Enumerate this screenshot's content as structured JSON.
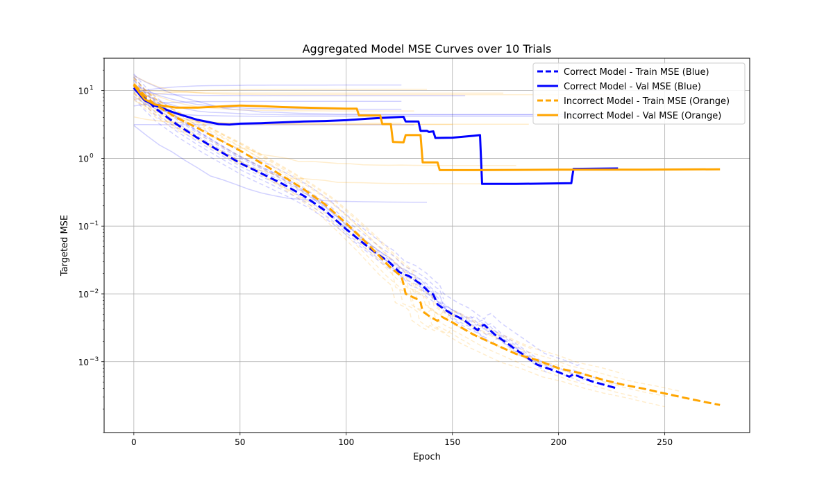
{
  "chart_data": {
    "type": "line",
    "title": "Aggregated Model MSE Curves over 10 Trials",
    "xlabel": "Epoch",
    "ylabel": "Targeted MSE",
    "xlim": [
      -14,
      290
    ],
    "ylim": [
      9e-05,
      30
    ],
    "yscale": "log",
    "grid": true,
    "legend_position": "top-right",
    "x_ticks": [
      0,
      50,
      100,
      150,
      200,
      250
    ],
    "y_ticks": [
      {
        "value": 0.001,
        "base": "10",
        "exp": "−3"
      },
      {
        "value": 0.01,
        "base": "10",
        "exp": "−2"
      },
      {
        "value": 0.1,
        "base": "10",
        "exp": "−1"
      },
      {
        "value": 1,
        "base": "10",
        "exp": "0"
      },
      {
        "value": 10,
        "base": "10",
        "exp": "1"
      }
    ],
    "colors": {
      "correct": "#0000ff",
      "incorrect": "#ffa500",
      "grid": "#b0b0b0"
    },
    "series": [
      {
        "name": "Correct Model - Train MSE (Blue)",
        "color": "#0000ff",
        "style": "dashed",
        "points": [
          [
            0,
            12
          ],
          [
            5,
            8
          ],
          [
            10,
            5.5
          ],
          [
            20,
            3.2
          ],
          [
            30,
            2.0
          ],
          [
            40,
            1.3
          ],
          [
            50,
            0.85
          ],
          [
            60,
            0.6
          ],
          [
            70,
            0.42
          ],
          [
            80,
            0.28
          ],
          [
            90,
            0.17
          ],
          [
            100,
            0.09
          ],
          [
            110,
            0.05
          ],
          [
            115,
            0.038
          ],
          [
            120,
            0.03
          ],
          [
            125,
            0.021
          ],
          [
            130,
            0.018
          ],
          [
            135,
            0.014
          ],
          [
            140,
            0.01
          ],
          [
            141,
            0.0098
          ],
          [
            143,
            0.007
          ],
          [
            146,
            0.006
          ],
          [
            150,
            0.005
          ],
          [
            155,
            0.0042
          ],
          [
            160,
            0.0032
          ],
          [
            162,
            0.0029
          ],
          [
            163,
            0.0033
          ],
          [
            165,
            0.0035
          ],
          [
            170,
            0.0025
          ],
          [
            180,
            0.0015
          ],
          [
            190,
            0.0009
          ],
          [
            200,
            0.0007
          ],
          [
            205,
            0.0006
          ],
          [
            207,
            0.00065
          ],
          [
            215,
            0.00052
          ],
          [
            228,
            0.0004
          ]
        ]
      },
      {
        "name": "Correct Model - Val MSE (Blue)",
        "color": "#0000ff",
        "style": "solid",
        "points": [
          [
            0,
            11
          ],
          [
            5,
            7.2
          ],
          [
            10,
            6.0
          ],
          [
            20,
            4.6
          ],
          [
            30,
            3.7
          ],
          [
            40,
            3.2
          ],
          [
            45,
            3.15
          ],
          [
            50,
            3.25
          ],
          [
            60,
            3.3
          ],
          [
            70,
            3.4
          ],
          [
            80,
            3.5
          ],
          [
            90,
            3.55
          ],
          [
            100,
            3.65
          ],
          [
            110,
            3.85
          ],
          [
            120,
            4.0
          ],
          [
            127,
            4.1
          ],
          [
            128,
            3.5
          ],
          [
            134,
            3.5
          ],
          [
            135,
            2.55
          ],
          [
            138,
            2.55
          ],
          [
            139,
            2.45
          ],
          [
            141,
            2.5
          ],
          [
            142,
            2.0
          ],
          [
            150,
            2.02
          ],
          [
            160,
            2.15
          ],
          [
            163,
            2.2
          ],
          [
            164,
            0.42
          ],
          [
            180,
            0.42
          ],
          [
            206,
            0.43
          ],
          [
            207,
            0.7
          ],
          [
            228,
            0.71
          ]
        ]
      },
      {
        "name": "Incorrect Model - Train MSE (Orange)",
        "color": "#ffa500",
        "style": "dashed",
        "points": [
          [
            0,
            12.5
          ],
          [
            5,
            8.5
          ],
          [
            10,
            6.2
          ],
          [
            20,
            4.0
          ],
          [
            30,
            2.8
          ],
          [
            40,
            1.9
          ],
          [
            50,
            1.3
          ],
          [
            60,
            0.85
          ],
          [
            70,
            0.55
          ],
          [
            80,
            0.35
          ],
          [
            90,
            0.21
          ],
          [
            100,
            0.11
          ],
          [
            110,
            0.055
          ],
          [
            120,
            0.026
          ],
          [
            126,
            0.018
          ],
          [
            127,
            0.014
          ],
          [
            128,
            0.01
          ],
          [
            133,
            0.0085
          ],
          [
            135,
            0.0075
          ],
          [
            136,
            0.0055
          ],
          [
            140,
            0.0045
          ],
          [
            143,
            0.004
          ],
          [
            145,
            0.0046
          ],
          [
            150,
            0.0038
          ],
          [
            160,
            0.0025
          ],
          [
            170,
            0.0018
          ],
          [
            180,
            0.0013
          ],
          [
            190,
            0.00105
          ],
          [
            200,
            0.0008
          ],
          [
            210,
            0.00068
          ],
          [
            220,
            0.00055
          ],
          [
            230,
            0.00046
          ],
          [
            240,
            0.0004
          ],
          [
            250,
            0.00034
          ],
          [
            260,
            0.00029
          ],
          [
            270,
            0.00025
          ],
          [
            276,
            0.00023
          ]
        ]
      },
      {
        "name": "Incorrect Model - Val MSE (Orange)",
        "color": "#ffa500",
        "style": "solid",
        "points": [
          [
            0,
            12
          ],
          [
            5,
            7.5
          ],
          [
            10,
            6.2
          ],
          [
            20,
            5.6
          ],
          [
            30,
            5.6
          ],
          [
            40,
            5.8
          ],
          [
            50,
            6.0
          ],
          [
            60,
            5.9
          ],
          [
            70,
            5.7
          ],
          [
            80,
            5.6
          ],
          [
            90,
            5.5
          ],
          [
            100,
            5.4
          ],
          [
            105,
            5.4
          ],
          [
            106,
            4.3
          ],
          [
            116,
            4.3
          ],
          [
            117,
            3.2
          ],
          [
            121,
            3.2
          ],
          [
            122,
            1.75
          ],
          [
            127,
            1.72
          ],
          [
            128,
            2.2
          ],
          [
            135,
            2.2
          ],
          [
            136,
            0.87
          ],
          [
            143,
            0.87
          ],
          [
            144,
            0.67
          ],
          [
            160,
            0.67
          ],
          [
            200,
            0.68
          ],
          [
            240,
            0.68
          ],
          [
            276,
            0.69
          ]
        ]
      }
    ]
  }
}
